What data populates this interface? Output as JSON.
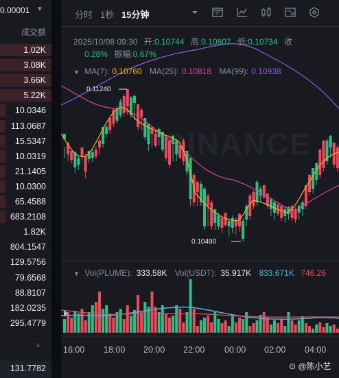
{
  "left_panel": {
    "header_value": "0.00001",
    "column_label": "成交额",
    "rows": [
      {
        "value": "1.02K",
        "color": "#3a2226"
      },
      {
        "value": "3.08K",
        "color": "#3a2226"
      },
      {
        "value": "3.66K",
        "color": "#3a2226"
      },
      {
        "value": "5.22K",
        "color": "#3a2226"
      },
      {
        "value": "10.0346",
        "color": "#181a20"
      },
      {
        "value": "113.0687",
        "color": "#181a20"
      },
      {
        "value": "15.5347",
        "color": "#181a20"
      },
      {
        "value": "10.0319",
        "color": "#181a20"
      },
      {
        "value": "21.1405",
        "color": "#181a20"
      },
      {
        "value": "10.0300",
        "color": "#181a20"
      },
      {
        "value": "65.4588",
        "color": "#181a20"
      },
      {
        "value": "683.2108",
        "color": "#181a20"
      },
      {
        "value": "1.82K",
        "color": "#181a20"
      },
      {
        "value": "804.1547",
        "color": "#181a20"
      },
      {
        "value": "129.5756",
        "color": "#181a20"
      },
      {
        "value": "79.6568",
        "color": "#181a20"
      },
      {
        "value": "88.8107",
        "color": "#181a20"
      },
      {
        "value": "182.0235",
        "color": "#181a20"
      },
      {
        "value": "295.4779",
        "color": "#181a20"
      }
    ],
    "bottom_value": "131.7782"
  },
  "toolbar": {
    "tab_time": "分时",
    "tab_1s": "1秒",
    "tab_15m": "15分钟"
  },
  "ohlc": {
    "datetime": "2025/10/08 09:30",
    "open_label": "开:",
    "open": "0.10744",
    "high_label": "高:",
    "high": "0.10807",
    "low_label": "低:",
    "low": "0.10734",
    "close_label": "收",
    "change": "0.28%",
    "amp_label": "振幅:",
    "amp": "0.67%"
  },
  "ma": {
    "ma7_label": "MA(7):",
    "ma7": "0.10760",
    "ma25_label": "MA(25):",
    "ma25": "0.10818",
    "ma99_label": "MA(99):",
    "ma99": "0.10938"
  },
  "annotations": {
    "high_price": "0.11240",
    "low_price": "0.10490"
  },
  "vol": {
    "vol_label": "Vol(PLUME):",
    "vol_plume": "333.58K",
    "usdt_label": "Vol(USDT):",
    "vol_usdt": "35.917K",
    "v3": "833.671K",
    "v4": "746.26"
  },
  "time_axis": [
    "16:00",
    "18:00",
    "20:00",
    "22:00",
    "00:00",
    "02:00",
    "04:00"
  ],
  "watermark": "BINANCE",
  "credit": "@陈小艺",
  "colors": {
    "up": "#2ebd85",
    "down": "#f6465d",
    "ma7": "#f0b90b",
    "ma25": "#d9439e",
    "ma99": "#8b60e0"
  }
}
